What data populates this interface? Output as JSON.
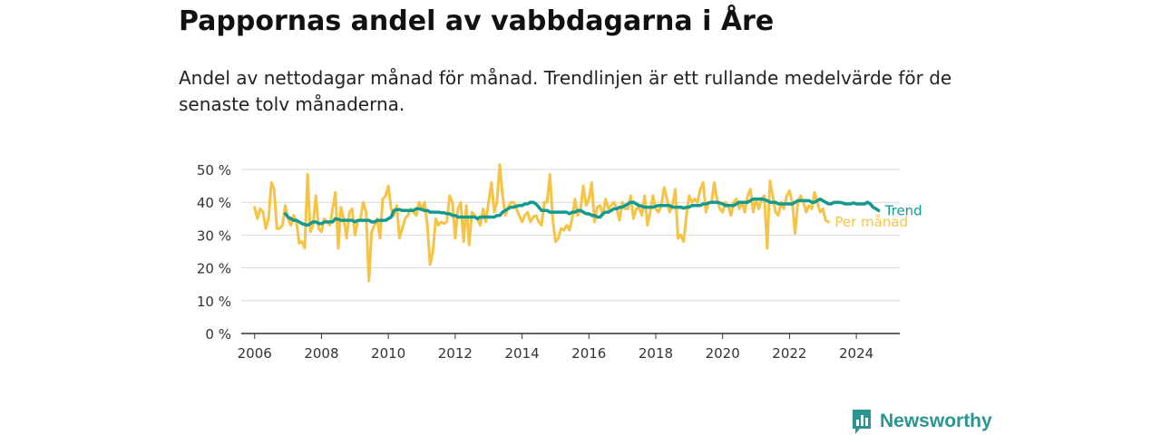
{
  "title": "Pappornas andel av vabbdagarna i Åre",
  "subtitle": "Andel av nettodagar månad för månad. Trendlinjen är ett rullande medelvärde för de senaste tolv månaderna.",
  "brand": {
    "name": "Newsworthy",
    "icon": "bar-chart-speech-bubble-icon",
    "color": "#2a9592"
  },
  "chart_data": {
    "type": "line",
    "title": "Pappornas andel av vabbdagarna i Åre",
    "xlabel": "",
    "ylabel": "",
    "xlim": [
      2005.6,
      2025.3
    ],
    "ylim": [
      0,
      50
    ],
    "x_ticks": [
      2006,
      2008,
      2010,
      2012,
      2014,
      2016,
      2018,
      2020,
      2022,
      2024
    ],
    "x_tick_labels": [
      "2006",
      "2008",
      "2010",
      "2012",
      "2014",
      "2016",
      "2018",
      "2020",
      "2022",
      "2024"
    ],
    "y_ticks": [
      0,
      10,
      20,
      30,
      40,
      50
    ],
    "y_tick_labels": [
      "0 %",
      "10 %",
      "20 %",
      "30 %",
      "40 %",
      "50 %"
    ],
    "grid": true,
    "series": [
      {
        "name": "Per månad",
        "color": "#f6c344",
        "start_year": 2006.0,
        "step": 0.083333,
        "values": [
          38.5,
          35,
          38,
          37,
          32,
          35,
          46,
          44,
          32,
          32,
          33,
          39,
          35,
          33,
          36,
          34,
          27.5,
          28,
          26,
          48.5,
          31,
          33,
          42,
          32,
          31,
          35,
          34,
          33,
          38,
          43,
          26,
          38.5,
          35,
          29,
          37,
          38,
          30,
          34,
          35,
          40,
          37,
          16,
          31,
          33,
          35,
          29,
          41,
          42,
          45,
          38,
          36,
          39,
          29,
          32,
          35,
          36,
          38,
          37,
          36,
          40,
          38,
          40,
          33,
          21,
          25,
          35,
          33,
          34,
          33.5,
          34,
          42,
          40,
          29,
          38,
          40,
          28,
          39,
          27,
          37,
          36,
          35,
          33,
          38,
          34,
          40,
          46,
          37,
          40,
          51.5,
          42,
          36,
          38.5,
          40,
          40,
          38,
          36,
          34,
          36,
          37,
          34,
          35.5,
          36,
          34,
          33,
          40,
          40,
          48.5,
          35,
          28,
          29,
          32,
          31.5,
          33,
          31.5,
          35,
          41,
          36,
          38,
          45,
          39,
          41,
          46,
          34,
          38.5,
          39,
          36,
          41,
          38,
          39,
          40,
          38,
          34.5,
          40,
          38,
          38,
          42,
          35,
          38,
          38.5,
          36,
          42,
          33,
          37,
          42,
          38,
          37,
          39,
          44.5,
          41,
          37,
          39,
          44,
          29,
          30,
          28,
          36,
          42,
          40,
          41,
          40,
          44,
          46,
          37,
          40,
          40,
          46,
          41,
          38,
          37,
          40,
          39,
          36,
          40,
          41,
          38,
          40,
          37,
          42,
          44,
          37,
          41,
          38,
          41,
          42,
          26,
          46.5,
          42,
          37,
          36,
          40,
          38,
          42,
          43.5,
          40,
          30.5,
          40,
          42,
          40,
          37,
          39,
          38,
          43,
          40,
          37,
          38,
          34.5,
          34
        ]
      },
      {
        "name": "Trend",
        "color": "#14998e",
        "start_year": 2006.917,
        "step": 0.083333,
        "values": [
          36.5,
          35.5,
          35,
          34.5,
          34.5,
          34,
          33.5,
          33.2,
          33,
          33.5,
          34,
          34,
          33.5,
          33.5,
          34,
          34,
          34,
          34,
          35,
          34.8,
          34.5,
          34.5,
          34.5,
          34.5,
          34.5,
          34,
          34.5,
          34.5,
          34.5,
          34.5,
          34.5,
          34,
          34,
          34.5,
          34.5,
          34.5,
          34.5,
          35,
          35.5,
          37.5,
          37.8,
          37.8,
          37.5,
          37.5,
          37.5,
          37.5,
          37.5,
          38,
          38,
          37.8,
          37.5,
          37.5,
          37,
          37,
          37,
          37,
          36.8,
          36.8,
          36.5,
          36.5,
          36,
          36,
          35.5,
          35.5,
          35.5,
          35.5,
          35.5,
          35.5,
          35.5,
          35,
          35.5,
          35.5,
          35.5,
          35.5,
          35.5,
          35.5,
          36,
          36,
          37,
          37.5,
          38,
          38.5,
          38.5,
          38.8,
          39,
          39,
          39.5,
          39.5,
          40,
          40,
          39.5,
          38.5,
          37.5,
          37.5,
          37.5,
          37,
          37,
          37,
          37,
          37,
          37,
          37,
          36.5,
          37,
          37,
          37.5,
          37.5,
          37,
          36.5,
          36.5,
          36,
          36,
          35.5,
          35.5,
          36.5,
          37,
          37,
          37.5,
          38,
          38,
          38.5,
          38.5,
          39,
          39.5,
          40,
          40,
          39.5,
          39,
          38.8,
          38.5,
          38.5,
          38.5,
          38.5,
          38.8,
          39,
          39,
          39,
          39,
          39,
          38.5,
          38.5,
          38.5,
          38.5,
          38.2,
          38.5,
          38.5,
          39,
          39,
          39,
          39,
          39.5,
          39.5,
          39.8,
          40,
          40,
          40,
          39.8,
          39.5,
          39,
          39,
          39,
          39,
          39.5,
          40,
          40,
          40,
          40,
          40.5,
          41,
          41,
          41,
          41,
          40.8,
          40.5,
          40,
          40,
          40,
          39.5,
          39.5,
          39.5,
          39.5,
          39.5,
          39.5,
          40,
          40.5,
          40.5,
          40.5,
          40.5,
          40.5,
          40,
          40,
          40.5,
          41,
          40.5,
          40,
          39.5,
          39.5,
          40,
          40,
          40,
          39.8,
          39.5,
          39.5,
          39.5,
          39.8,
          39.5,
          39.5,
          39.5,
          39.5,
          40,
          39.5,
          38.5,
          38,
          37.5
        ]
      }
    ]
  }
}
